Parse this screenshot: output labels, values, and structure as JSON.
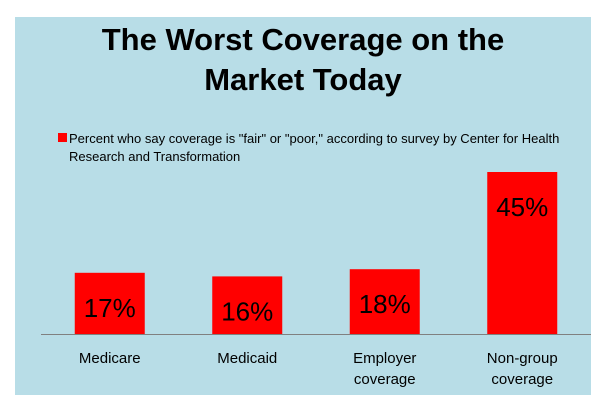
{
  "chart_data": {
    "type": "bar",
    "title": "The Worst Coverage on the Market Today",
    "title_lines": [
      "The Worst Coverage on the",
      "Market Today"
    ],
    "categories": [
      "Medicare",
      "Medicaid",
      "Employer coverage",
      "Non-group coverage"
    ],
    "category_lines": [
      [
        "Medicare"
      ],
      [
        "Medicaid"
      ],
      [
        "Employer",
        "coverage"
      ],
      [
        "Non-group",
        "coverage"
      ]
    ],
    "series": [
      {
        "name": "Percent who say coverage is \"fair\" or \"poor,\" according to survey by Center for Health Research and Transformation",
        "values": [
          17,
          16,
          18,
          45
        ]
      }
    ],
    "data_labels": [
      "17%",
      "16%",
      "18%",
      "45%"
    ],
    "legend_placement": "top",
    "grid": false,
    "ylim": [
      0,
      45
    ],
    "colors": {
      "bar": "#ff0000",
      "background": "#b8dde7",
      "axis": "#808080"
    }
  }
}
